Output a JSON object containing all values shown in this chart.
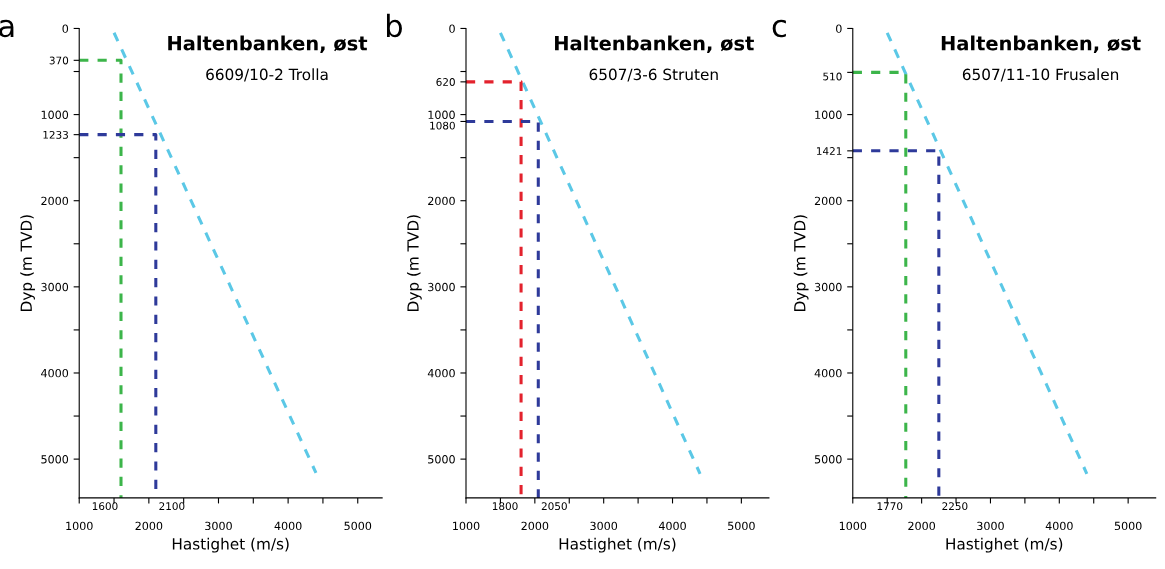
{
  "chart_data": [
    {
      "type": "line",
      "title": "Haltenbanken, øst",
      "subtitle": "6609/10-2 Trolla",
      "xlabel": "Hastighet (m/s)",
      "ylabel": "Dyp (m TVD)",
      "annotations": [
        "a",
        {
          "text": "1600",
          "x": 1600,
          "y": 5450
        },
        {
          "text": "2100",
          "x": 2100,
          "y": 5450
        }
      ],
      "line_style": "dashed",
      "marker": "none",
      "grid": false,
      "legend": false,
      "xlim": [
        1000,
        5350
      ],
      "ylim": [
        5450,
        0
      ],
      "xticks": [
        1000,
        {
          "value": 1500,
          "label": null
        },
        2000,
        {
          "value": 2500,
          "label": null
        },
        3000,
        {
          "value": 3500,
          "label": null
        },
        4000,
        {
          "value": 4500,
          "label": null
        },
        5000
      ],
      "yticks": [
        0,
        370,
        {
          "value": 500,
          "label": null
        },
        1000,
        1233,
        {
          "value": 1500,
          "label": null
        },
        2000,
        {
          "value": 2500,
          "label": null
        },
        3000,
        {
          "value": 3500,
          "label": null
        },
        4000,
        {
          "value": 4500,
          "label": null
        },
        5000
      ],
      "series": [
        {
          "color": "#5bc8e6",
          "x": [
            1500,
            4400
          ],
          "values": [
            50,
            5160
          ]
        },
        {
          "color": "#3cb54a",
          "x": [
            1000,
            1600,
            1600
          ],
          "values": [
            370,
            370,
            5450
          ]
        },
        {
          "color": "#2e3a9a",
          "x": [
            1000,
            2100,
            2100
          ],
          "values": [
            1233,
            1233,
            5450
          ]
        }
      ]
    },
    {
      "type": "line",
      "title": "Haltenbanken, øst",
      "subtitle": "6507/3-6 Struten",
      "xlabel": "Hastighet (m/s)",
      "ylabel": "Dyp (m TVD)",
      "annotations": [
        "b",
        {
          "text": "1800",
          "x": 1800,
          "y": 5450
        },
        {
          "text": "2050",
          "x": 2050,
          "y": 5450
        }
      ],
      "line_style": "dashed",
      "marker": "none",
      "grid": false,
      "legend": false,
      "xlim": [
        1000,
        5400
      ],
      "ylim": [
        5450,
        0
      ],
      "xticks": [
        1000,
        {
          "value": 1500,
          "label": null
        },
        2000,
        {
          "value": 2500,
          "label": null
        },
        3000,
        {
          "value": 3500,
          "label": null
        },
        4000,
        {
          "value": 4500,
          "label": null
        },
        5000
      ],
      "yticks": [
        0,
        {
          "value": 500,
          "label": null
        },
        620,
        1000,
        1080,
        {
          "value": 1500,
          "label": null
        },
        2000,
        {
          "value": 2500,
          "label": null
        },
        3000,
        {
          "value": 3500,
          "label": null
        },
        4000,
        {
          "value": 4500,
          "label": null
        },
        5000
      ],
      "series": [
        {
          "color": "#5bc8e6",
          "x": [
            1500,
            4400
          ],
          "values": [
            50,
            5170
          ]
        },
        {
          "color": "#e3222d",
          "x": [
            1000,
            1800,
            1800
          ],
          "values": [
            620,
            620,
            5450
          ]
        },
        {
          "color": "#2e3a9a",
          "x": [
            1000,
            2050,
            2050
          ],
          "values": [
            1080,
            1080,
            5450
          ]
        }
      ]
    },
    {
      "type": "line",
      "title": "Haltenbanken, øst",
      "subtitle": "6507/11-10 Frusalen",
      "xlabel": "Hastighet (m/s)",
      "ylabel": "Dyp (m TVD)",
      "annotations": [
        "c",
        {
          "text": "1770",
          "x": 1770,
          "y": 5450
        },
        {
          "text": "2250",
          "x": 2250,
          "y": 5450
        }
      ],
      "line_style": "dashed",
      "marker": "none",
      "grid": false,
      "legend": false,
      "xlim": [
        1000,
        5400
      ],
      "ylim": [
        5450,
        0
      ],
      "xticks": [
        1000,
        {
          "value": 1500,
          "label": null
        },
        2000,
        {
          "value": 2500,
          "label": null
        },
        3000,
        {
          "value": 3500,
          "label": null
        },
        4000,
        {
          "value": 4500,
          "label": null
        },
        5000
      ],
      "yticks": [
        0,
        510,
        1000,
        1421,
        {
          "value": 1500,
          "label": null
        },
        2000,
        {
          "value": 2500,
          "label": null
        },
        3000,
        {
          "value": 3500,
          "label": null
        },
        4000,
        {
          "value": 4500,
          "label": null
        },
        5000
      ],
      "series": [
        {
          "color": "#5bc8e6",
          "x": [
            1500,
            4400
          ],
          "values": [
            50,
            5170
          ]
        },
        {
          "color": "#3cb54a",
          "x": [
            1000,
            1770,
            1770
          ],
          "values": [
            510,
            510,
            5450
          ]
        },
        {
          "color": "#2e3a9a",
          "x": [
            1000,
            2250,
            2250
          ],
          "values": [
            1421,
            1421,
            5450
          ]
        }
      ]
    }
  ]
}
